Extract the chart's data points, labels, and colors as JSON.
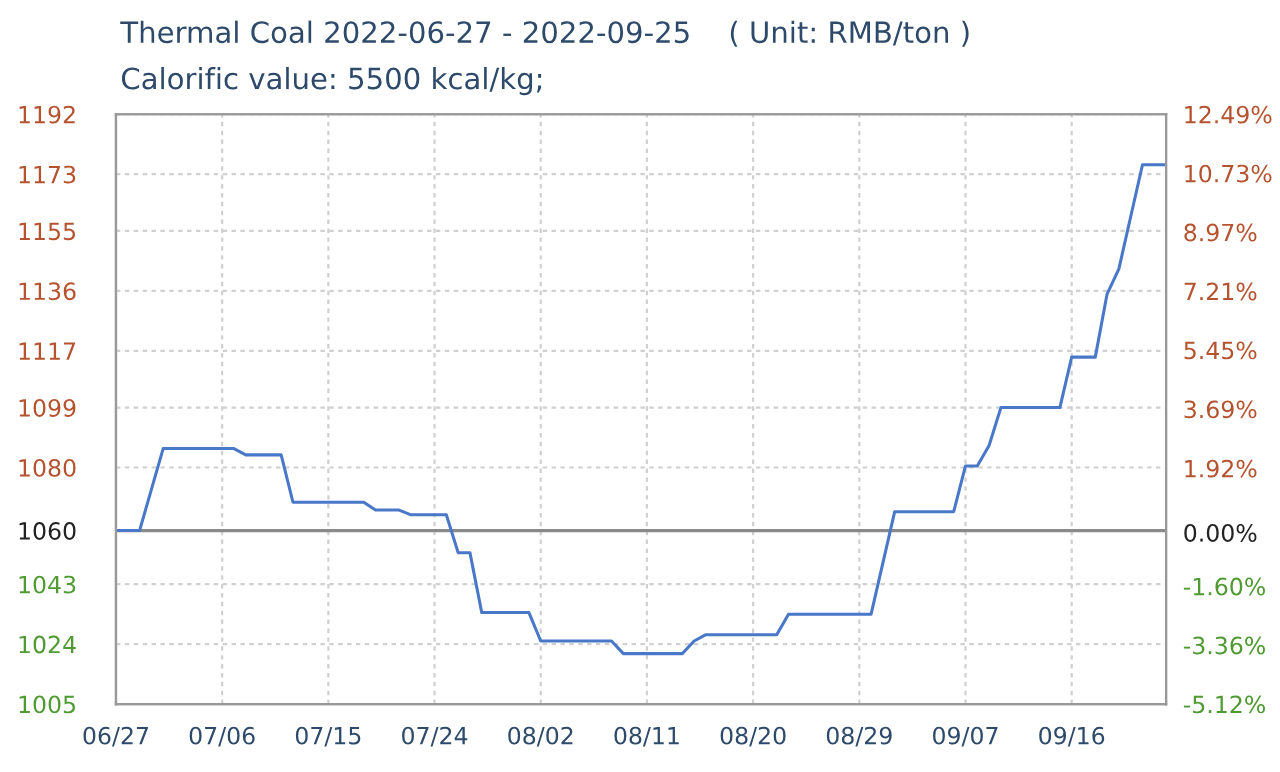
{
  "chart_data": {
    "type": "line",
    "title": "Thermal Coal 2022-06-27 - 2022-09-25    ( Unit: RMB/ton )",
    "subtitle": "Calorific value: 5500 kcal/kg;",
    "x": [
      "2022-06-27",
      "2022-06-29",
      "2022-07-01",
      "2022-07-07",
      "2022-07-08",
      "2022-07-11",
      "2022-07-12",
      "2022-07-18",
      "2022-07-19",
      "2022-07-21",
      "2022-07-22",
      "2022-07-25",
      "2022-07-26",
      "2022-07-27",
      "2022-07-28",
      "2022-08-01",
      "2022-08-02",
      "2022-08-08",
      "2022-08-09",
      "2022-08-14",
      "2022-08-15",
      "2022-08-16",
      "2022-08-22",
      "2022-08-23",
      "2022-08-30",
      "2022-09-01",
      "2022-09-06",
      "2022-09-07",
      "2022-09-08",
      "2022-09-09",
      "2022-09-10",
      "2022-09-15",
      "2022-09-16",
      "2022-09-18",
      "2022-09-19",
      "2022-09-20",
      "2022-09-22",
      "2022-09-24"
    ],
    "series": [
      {
        "color": "#4a78c8",
        "values": [
          1060,
          1060,
          1086,
          1086,
          1084,
          1084,
          1069,
          1069,
          1066.5,
          1066.5,
          1065,
          1065,
          1053,
          1053,
          1034,
          1034,
          1025,
          1025,
          1021,
          1021,
          1025,
          1027,
          1027,
          1033.5,
          1033.5,
          1066,
          1066,
          1080.5,
          1080.5,
          1087,
          1099,
          1099,
          1115,
          1115,
          1135,
          1143,
          1176,
          1176
        ]
      }
    ],
    "xlim": [
      "2022-06-27",
      "2022-09-24"
    ],
    "xticks": [
      {
        "value": "2022-06-27",
        "label": "06/27"
      },
      {
        "value": "2022-07-06",
        "label": "07/06"
      },
      {
        "value": "2022-07-15",
        "label": "07/15"
      },
      {
        "value": "2022-07-24",
        "label": "07/24"
      },
      {
        "value": "2022-08-02",
        "label": "08/02"
      },
      {
        "value": "2022-08-11",
        "label": "08/11"
      },
      {
        "value": "2022-08-20",
        "label": "08/20"
      },
      {
        "value": "2022-08-29",
        "label": "08/29"
      },
      {
        "value": "2022-09-07",
        "label": "09/07"
      },
      {
        "value": "2022-09-16",
        "label": "09/16"
      }
    ],
    "ylim": [
      1005,
      1192
    ],
    "yticks": [
      1005,
      1024,
      1043,
      1060,
      1080,
      1099,
      1117,
      1136,
      1155,
      1173,
      1192
    ],
    "y2lim": [
      -5.12,
      12.49
    ],
    "y2ticks": [
      {
        "value": -5.12,
        "label": "-5.12%"
      },
      {
        "value": -3.36,
        "label": "-3.36%"
      },
      {
        "value": -1.6,
        "label": "-1.60%"
      },
      {
        "value": 0,
        "label": "0.00%"
      },
      {
        "value": 1.92,
        "label": "1.92%"
      },
      {
        "value": 3.69,
        "label": "3.69%"
      },
      {
        "value": 5.45,
        "label": "5.45%"
      },
      {
        "value": 7.21,
        "label": "7.21%"
      },
      {
        "value": 8.97,
        "label": "8.97%"
      },
      {
        "value": 10.73,
        "label": "10.73%"
      },
      {
        "value": 12.49,
        "label": "12.49%"
      }
    ],
    "ref_lines": [
      {
        "axis": "y",
        "value": 1060,
        "color": "#8a8a8a"
      }
    ],
    "grid": true,
    "marker": "none",
    "line_style": "solid"
  }
}
